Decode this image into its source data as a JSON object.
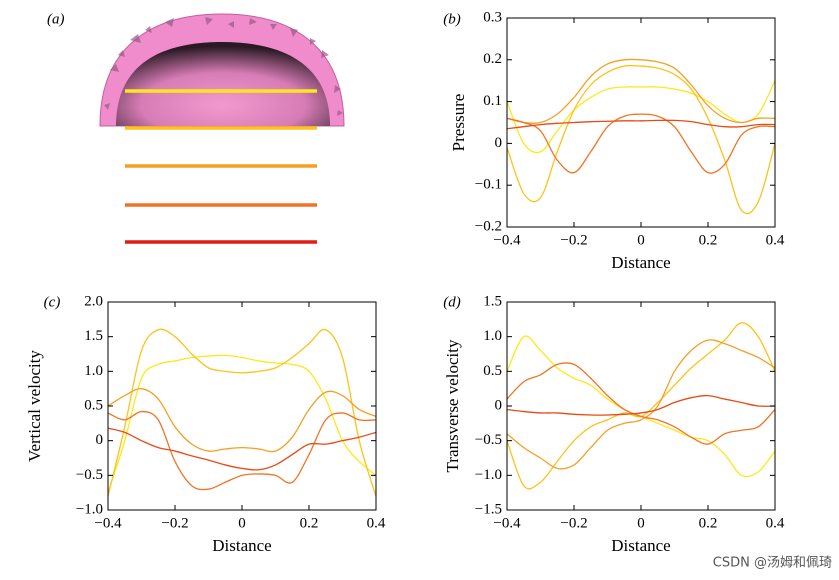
{
  "figure": {
    "label": "(a)"
  },
  "watermark": "CSDN @汤姆和佩琦",
  "chart_data": [
    {
      "type": "line",
      "panel_label": "(b)",
      "xlabel": "Distance",
      "ylabel": "Pressure",
      "x": [
        -0.4,
        -0.35,
        -0.3,
        -0.25,
        -0.2,
        -0.15,
        -0.1,
        -0.05,
        0,
        0.05,
        0.1,
        0.15,
        0.2,
        0.25,
        0.3,
        0.35,
        0.4
      ],
      "xlim": [
        -0.4,
        0.4
      ],
      "ylim": [
        -0.2,
        0.3
      ],
      "xticks": [
        {
          "value": -0.4,
          "label": "−0.4"
        },
        {
          "value": -0.2,
          "label": "−0.2"
        },
        0,
        0.2,
        0.4
      ],
      "yticks": [
        {
          "value": -0.2,
          "label": "−0.2"
        },
        {
          "value": -0.1,
          "label": "−0.1"
        },
        0,
        0.1,
        0.2,
        0.3
      ],
      "series": [
        {
          "color": "#ffe81a",
          "values": [
            0.1,
            0.0,
            -0.02,
            0.03,
            0.08,
            0.11,
            0.13,
            0.135,
            0.135,
            0.135,
            0.13,
            0.12,
            0.1,
            0.07,
            0.05,
            0.07,
            0.15
          ]
        },
        {
          "color": "#ffc21a",
          "values": [
            -0.01,
            -0.12,
            -0.13,
            -0.02,
            0.08,
            0.14,
            0.17,
            0.185,
            0.185,
            0.18,
            0.165,
            0.13,
            0.06,
            -0.04,
            -0.16,
            -0.14,
            0.0
          ]
        },
        {
          "color": "#f5a024",
          "values": [
            0.06,
            0.05,
            0.05,
            0.07,
            0.11,
            0.16,
            0.19,
            0.2,
            0.2,
            0.195,
            0.18,
            0.14,
            0.09,
            0.06,
            0.05,
            0.06,
            0.06
          ]
        },
        {
          "color": "#f07424",
          "values": [
            0.06,
            0.05,
            0.03,
            -0.04,
            -0.07,
            -0.02,
            0.04,
            0.065,
            0.07,
            0.065,
            0.04,
            -0.02,
            -0.07,
            -0.05,
            0.02,
            0.04,
            0.04
          ]
        },
        {
          "color": "#e84a14",
          "values": [
            0.035,
            0.04,
            0.045,
            0.048,
            0.05,
            0.052,
            0.053,
            0.054,
            0.054,
            0.055,
            0.055,
            0.052,
            0.045,
            0.04,
            0.04,
            0.045,
            0.045
          ]
        }
      ]
    },
    {
      "type": "line",
      "panel_label": "(c)",
      "xlabel": "Distance",
      "ylabel": "Vertical velocity",
      "x": [
        -0.4,
        -0.35,
        -0.3,
        -0.25,
        -0.2,
        -0.15,
        -0.1,
        -0.05,
        0,
        0.05,
        0.1,
        0.15,
        0.2,
        0.25,
        0.3,
        0.35,
        0.4
      ],
      "xlim": [
        -0.4,
        0.4
      ],
      "ylim": [
        -1.0,
        2.0
      ],
      "xticks": [
        {
          "value": -0.4,
          "label": "−0.4"
        },
        {
          "value": -0.2,
          "label": "−0.2"
        },
        0,
        0.2,
        0.4
      ],
      "yticks": [
        {
          "value": -1.0,
          "label": "−1.0"
        },
        {
          "value": -0.5,
          "label": "−0.5"
        },
        0,
        0.5,
        {
          "value": 1.0,
          "label": "1.0"
        },
        1.5,
        {
          "value": 2.0,
          "label": "2.0"
        }
      ],
      "series": [
        {
          "color": "#ffe81a",
          "values": [
            -0.75,
            0.0,
            0.9,
            1.1,
            1.15,
            1.2,
            1.22,
            1.23,
            1.2,
            1.15,
            1.12,
            1.1,
            1.0,
            0.6,
            0.0,
            -0.3,
            -0.5
          ]
        },
        {
          "color": "#ffc21a",
          "values": [
            -0.8,
            0.2,
            1.3,
            1.6,
            1.5,
            1.25,
            1.05,
            1.0,
            0.98,
            1.0,
            1.05,
            1.2,
            1.4,
            1.6,
            1.2,
            0.0,
            -0.8
          ]
        },
        {
          "color": "#f5a024",
          "values": [
            0.5,
            0.65,
            0.75,
            0.6,
            0.2,
            -0.05,
            -0.15,
            -0.12,
            -0.1,
            -0.12,
            -0.15,
            0.05,
            0.45,
            0.7,
            0.65,
            0.45,
            0.35
          ]
        },
        {
          "color": "#f07424",
          "values": [
            0.4,
            0.3,
            0.42,
            0.3,
            -0.3,
            -0.65,
            -0.7,
            -0.6,
            -0.5,
            -0.48,
            -0.5,
            -0.6,
            -0.2,
            0.3,
            0.4,
            0.3,
            0.3
          ]
        },
        {
          "color": "#e84a14",
          "values": [
            0.18,
            0.12,
            0.0,
            -0.1,
            -0.15,
            -0.22,
            -0.28,
            -0.35,
            -0.4,
            -0.42,
            -0.35,
            -0.2,
            -0.05,
            -0.05,
            0.0,
            0.05,
            0.12
          ]
        }
      ]
    },
    {
      "type": "line",
      "panel_label": "(d)",
      "xlabel": "Distance",
      "ylabel": "Transverse velocity",
      "x": [
        -0.4,
        -0.35,
        -0.3,
        -0.25,
        -0.2,
        -0.15,
        -0.1,
        -0.05,
        0,
        0.05,
        0.1,
        0.15,
        0.2,
        0.25,
        0.3,
        0.35,
        0.4
      ],
      "xlim": [
        -0.4,
        0.4
      ],
      "ylim": [
        -1.5,
        1.5
      ],
      "xticks": [
        {
          "value": -0.4,
          "label": "−0.4"
        },
        {
          "value": -0.2,
          "label": "−0.2"
        },
        0,
        0.2,
        0.4
      ],
      "yticks": [
        {
          "value": -1.5,
          "label": "−1.5"
        },
        {
          "value": -1.0,
          "label": "−1.0"
        },
        {
          "value": -0.5,
          "label": "−0.5"
        },
        0,
        0.5,
        {
          "value": 1.0,
          "label": "1.0"
        },
        1.5
      ],
      "series": [
        {
          "color": "#ffe81a",
          "values": [
            0.5,
            1.0,
            0.8,
            0.55,
            0.4,
            0.3,
            0.1,
            -0.05,
            -0.15,
            -0.25,
            -0.35,
            -0.45,
            -0.5,
            -0.7,
            -1.0,
            -0.95,
            -0.65
          ]
        },
        {
          "color": "#ffc21a",
          "values": [
            -0.5,
            -1.15,
            -1.1,
            -0.8,
            -0.5,
            -0.3,
            -0.2,
            -0.1,
            -0.15,
            0.05,
            0.3,
            0.55,
            0.75,
            0.95,
            1.2,
            1.0,
            0.5
          ]
        },
        {
          "color": "#f5a024",
          "values": [
            -0.4,
            -0.6,
            -0.75,
            -0.9,
            -0.85,
            -0.6,
            -0.35,
            -0.25,
            -0.2,
            0.0,
            0.5,
            0.8,
            0.95,
            0.9,
            0.8,
            0.7,
            0.55
          ]
        },
        {
          "color": "#f07424",
          "values": [
            0.1,
            0.35,
            0.45,
            0.6,
            0.6,
            0.4,
            0.15,
            -0.05,
            -0.15,
            -0.2,
            -0.3,
            -0.45,
            -0.55,
            -0.4,
            -0.35,
            -0.3,
            -0.05
          ]
        },
        {
          "color": "#e84a14",
          "values": [
            -0.05,
            -0.08,
            -0.1,
            -0.1,
            -0.12,
            -0.13,
            -0.13,
            -0.12,
            -0.1,
            -0.05,
            0.05,
            0.12,
            0.15,
            0.1,
            0.05,
            0.0,
            0.0
          ]
        }
      ]
    }
  ]
}
